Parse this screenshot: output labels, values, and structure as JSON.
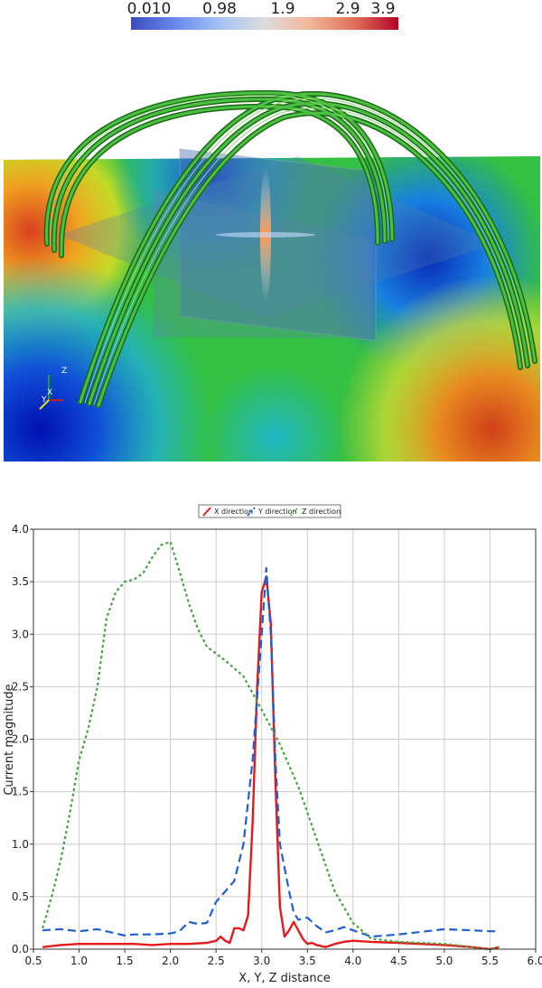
{
  "colorbar": {
    "labels": [
      "0.010",
      "0.98",
      "1.9",
      "2.9",
      "3.9"
    ],
    "colors": [
      "#3a4cc0",
      "#dcdcdc",
      "#b40426"
    ]
  },
  "scene": {
    "axes_labels": [
      "X",
      "Y",
      "Z"
    ]
  },
  "chart_data": {
    "type": "line",
    "title": "",
    "xlabel": "X, Y, Z distance",
    "ylabel": "Current magnitude",
    "xlim": [
      0.5,
      6.0
    ],
    "ylim": [
      0.0,
      4.0
    ],
    "xticks": [
      "0.5",
      "1.0",
      "1.5",
      "2.0",
      "2.5",
      "3.0",
      "3.5",
      "4.0",
      "4.5",
      "5.0",
      "5.5",
      "6.0"
    ],
    "yticks": [
      "0.0",
      "0.5",
      "1.0",
      "1.5",
      "2.0",
      "2.5",
      "3.0",
      "3.5",
      "4.0"
    ],
    "grid": true,
    "legend_position": "top-center",
    "series": [
      {
        "name": "X direction",
        "color": "#e31a1c",
        "style": "solid",
        "x": [
          0.6,
          0.8,
          1.0,
          1.2,
          1.4,
          1.6,
          1.8,
          2.0,
          2.2,
          2.4,
          2.5,
          2.55,
          2.6,
          2.65,
          2.7,
          2.75,
          2.8,
          2.85,
          2.9,
          2.95,
          3.0,
          3.05,
          3.1,
          3.15,
          3.2,
          3.25,
          3.3,
          3.35,
          3.4,
          3.45,
          3.5,
          3.55,
          3.6,
          3.7,
          3.8,
          3.9,
          4.0,
          4.2,
          4.5,
          5.0,
          5.3,
          5.5,
          5.6
        ],
        "y": [
          0.02,
          0.04,
          0.05,
          0.05,
          0.05,
          0.05,
          0.04,
          0.05,
          0.05,
          0.06,
          0.08,
          0.12,
          0.08,
          0.06,
          0.2,
          0.2,
          0.18,
          0.32,
          1.2,
          2.5,
          3.4,
          3.55,
          3.1,
          1.6,
          0.4,
          0.12,
          0.18,
          0.26,
          0.18,
          0.1,
          0.05,
          0.06,
          0.04,
          0.02,
          0.05,
          0.07,
          0.08,
          0.07,
          0.06,
          0.04,
          0.02,
          0.0,
          0.02
        ]
      },
      {
        "name": "Y direction",
        "color": "#1f5fd6",
        "style": "dashed",
        "x": [
          0.6,
          0.8,
          1.0,
          1.2,
          1.4,
          1.5,
          1.6,
          1.8,
          2.0,
          2.1,
          2.2,
          2.3,
          2.4,
          2.5,
          2.6,
          2.7,
          2.8,
          2.9,
          3.0,
          3.05,
          3.1,
          3.15,
          3.2,
          3.3,
          3.35,
          3.4,
          3.5,
          3.6,
          3.7,
          3.8,
          3.9,
          4.0,
          4.2,
          4.5,
          5.0,
          5.3,
          5.5,
          5.6
        ],
        "y": [
          0.18,
          0.19,
          0.17,
          0.19,
          0.15,
          0.13,
          0.14,
          0.14,
          0.15,
          0.17,
          0.26,
          0.24,
          0.25,
          0.45,
          0.55,
          0.65,
          1.0,
          1.8,
          3.0,
          3.63,
          3.0,
          1.8,
          1.0,
          0.55,
          0.35,
          0.28,
          0.3,
          0.22,
          0.16,
          0.18,
          0.21,
          0.18,
          0.12,
          0.14,
          0.19,
          0.18,
          0.17,
          0.17
        ]
      },
      {
        "name": "Z direction",
        "color": "#3fa535",
        "style": "dotted",
        "x": [
          0.6,
          0.7,
          0.8,
          0.9,
          1.0,
          1.1,
          1.2,
          1.3,
          1.4,
          1.5,
          1.6,
          1.7,
          1.8,
          1.9,
          2.0,
          2.1,
          2.2,
          2.3,
          2.4,
          2.6,
          2.8,
          3.0,
          3.2,
          3.4,
          3.6,
          3.8,
          4.0,
          4.2,
          4.5,
          5.0,
          5.3,
          5.5,
          5.6
        ],
        "y": [
          0.2,
          0.5,
          0.85,
          1.3,
          1.8,
          2.1,
          2.5,
          3.15,
          3.4,
          3.5,
          3.52,
          3.58,
          3.73,
          3.85,
          3.88,
          3.6,
          3.3,
          3.05,
          2.88,
          2.75,
          2.6,
          2.28,
          1.95,
          1.55,
          1.05,
          0.55,
          0.25,
          0.1,
          0.07,
          0.05,
          0.02,
          0.0,
          0.02
        ]
      }
    ]
  }
}
